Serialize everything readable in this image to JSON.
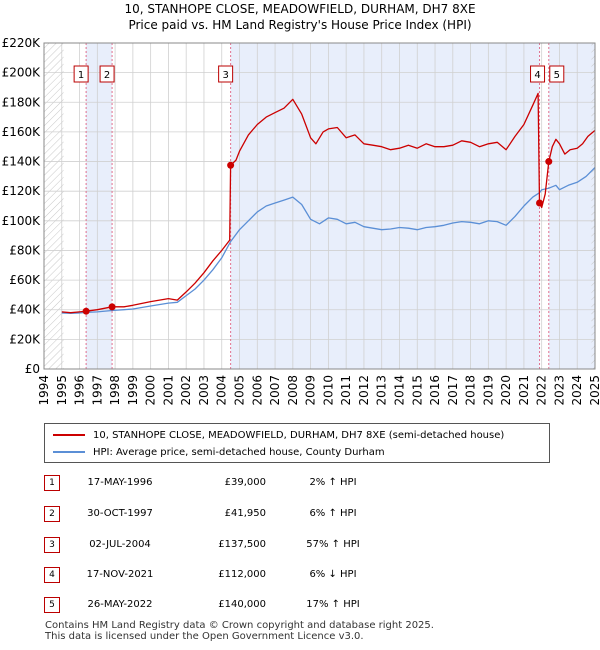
{
  "title_line1": "10, STANHOPE CLOSE, MEADOWFIELD, DURHAM, DH7 8XE",
  "title_line2": "Price paid vs. HM Land Registry's House Price Index (HPI)",
  "legend": {
    "property": "10, STANHOPE CLOSE, MEADOWFIELD, DURHAM, DH7 8XE (semi-detached house)",
    "hpi": "HPI: Average price, semi-detached house, County Durham"
  },
  "transactions": [
    {
      "num": "1",
      "date": "17-MAY-1996",
      "price": "£39,000",
      "hpi": "2% ↑ HPI"
    },
    {
      "num": "2",
      "date": "30-OCT-1997",
      "price": "£41,950",
      "hpi": "6% ↑ HPI"
    },
    {
      "num": "3",
      "date": "02-JUL-2004",
      "price": "£137,500",
      "hpi": "57% ↑ HPI"
    },
    {
      "num": "4",
      "date": "17-NOV-2021",
      "price": "£112,000",
      "hpi": "6% ↓ HPI"
    },
    {
      "num": "5",
      "date": "26-MAY-2022",
      "price": "£140,000",
      "hpi": "17% ↑ HPI"
    }
  ],
  "footer": {
    "line1": "Contains HM Land Registry data © Crown copyright and database right 2025.",
    "line2": "This data is licensed under the Open Government Licence v3.0."
  },
  "colors": {
    "property": "#cc0000",
    "hpi": "#5b8fd6",
    "shade": "#e8eefb",
    "grid": "#d0d0d0",
    "marker_line": "#e0708f"
  },
  "chart_data": {
    "type": "line",
    "title": "Price paid vs. HM Land Registry's House Price Index (HPI)",
    "xlim": [
      1994,
      2025
    ],
    "ylim": [
      0,
      220000
    ],
    "x_ticks": [
      1994,
      1995,
      1996,
      1997,
      1998,
      1999,
      2000,
      2001,
      2002,
      2003,
      2004,
      2005,
      2006,
      2007,
      2008,
      2009,
      2010,
      2011,
      2012,
      2013,
      2014,
      2015,
      2016,
      2017,
      2018,
      2019,
      2020,
      2021,
      2022,
      2023,
      2024,
      2025
    ],
    "y_ticks": [
      0,
      20000,
      40000,
      60000,
      80000,
      100000,
      120000,
      140000,
      160000,
      180000,
      200000,
      220000
    ],
    "y_tick_labels": [
      "£0",
      "£20K",
      "£40K",
      "£60K",
      "£80K",
      "£100K",
      "£120K",
      "£140K",
      "£160K",
      "£180K",
      "£200K",
      "£220K"
    ],
    "shaded_ranges": [
      [
        1996.37,
        1997.83
      ],
      [
        2004.5,
        2021.88
      ],
      [
        2022.4,
        2025
      ]
    ],
    "hatched_ranges": [
      [
        1994,
        1995.1
      ],
      [
        2024.8,
        2025
      ]
    ],
    "sales": [
      {
        "label": "1",
        "x": 1996.37,
        "y": 39000
      },
      {
        "label": "2",
        "x": 1997.83,
        "y": 41950
      },
      {
        "label": "3",
        "x": 2004.5,
        "y": 137500
      },
      {
        "label": "4",
        "x": 2021.88,
        "y": 112000
      },
      {
        "label": "5",
        "x": 2022.4,
        "y": 140000
      }
    ],
    "series": [
      {
        "name": "10, STANHOPE CLOSE, MEADOWFIELD, DURHAM, DH7 8XE (semi-detached house)",
        "x": [
          1995.0,
          1995.5,
          1996.0,
          1996.37,
          1997.0,
          1997.83,
          1998.5,
          1999.0,
          2000.0,
          2001.0,
          2001.5,
          2002.0,
          2002.5,
          2003.0,
          2003.5,
          2004.0,
          2004.45,
          2004.5,
          2004.8,
          2005.0,
          2005.5,
          2006.0,
          2006.5,
          2007.0,
          2007.5,
          2008.0,
          2008.5,
          2009.0,
          2009.3,
          2009.7,
          2010.0,
          2010.5,
          2011.0,
          2011.5,
          2012.0,
          2012.5,
          2013.0,
          2013.5,
          2014.0,
          2014.5,
          2015.0,
          2015.5,
          2016.0,
          2016.5,
          2017.0,
          2017.5,
          2018.0,
          2018.5,
          2019.0,
          2019.5,
          2020.0,
          2020.5,
          2021.0,
          2021.5,
          2021.8,
          2021.88,
          2022.0,
          2022.2,
          2022.4,
          2022.6,
          2022.8,
          2023.0,
          2023.3,
          2023.6,
          2024.0,
          2024.3,
          2024.6,
          2024.9,
          2025.0
        ],
        "y": [
          38500,
          38000,
          38500,
          39000,
          40000,
          41950,
          42000,
          43000,
          45500,
          47500,
          46500,
          52000,
          58000,
          65000,
          73000,
          80000,
          87000,
          137500,
          141000,
          147000,
          158000,
          165000,
          170000,
          173000,
          176000,
          182000,
          172000,
          156000,
          152000,
          160000,
          162000,
          163000,
          156000,
          158000,
          152000,
          151000,
          150000,
          148000,
          149000,
          151000,
          149000,
          152000,
          150000,
          150000,
          151000,
          154000,
          153000,
          150000,
          152000,
          153000,
          148000,
          157000,
          165000,
          178000,
          186000,
          112000,
          109000,
          118000,
          140000,
          150000,
          155000,
          152000,
          145000,
          148000,
          149000,
          152000,
          157000,
          160000,
          161000
        ]
      },
      {
        "name": "HPI: Average price, semi-detached house, County Durham",
        "x": [
          1995.0,
          1995.5,
          1996.0,
          1996.37,
          1997.0,
          1997.83,
          1998.5,
          1999.0,
          2000.0,
          2001.0,
          2001.5,
          2002.0,
          2002.5,
          2003.0,
          2003.5,
          2004.0,
          2004.5,
          2005.0,
          2005.5,
          2006.0,
          2006.5,
          2007.0,
          2007.5,
          2008.0,
          2008.5,
          2009.0,
          2009.5,
          2010.0,
          2010.5,
          2011.0,
          2011.5,
          2012.0,
          2012.5,
          2013.0,
          2013.5,
          2014.0,
          2014.5,
          2015.0,
          2015.5,
          2016.0,
          2016.5,
          2017.0,
          2017.5,
          2018.0,
          2018.5,
          2019.0,
          2019.5,
          2020.0,
          2020.5,
          2021.0,
          2021.5,
          2021.88,
          2022.0,
          2022.4,
          2022.8,
          2023.0,
          2023.5,
          2024.0,
          2024.5,
          2025.0
        ],
        "y": [
          37800,
          37500,
          37800,
          38200,
          38500,
          39500,
          40000,
          40500,
          42500,
          44500,
          45000,
          49500,
          54000,
          60000,
          67000,
          75000,
          86000,
          94000,
          100000,
          106000,
          110000,
          112000,
          114000,
          116000,
          111000,
          101000,
          98000,
          102000,
          101000,
          98000,
          99000,
          96000,
          95000,
          94000,
          94500,
          95500,
          95000,
          94000,
          95500,
          96000,
          97000,
          98500,
          99500,
          99000,
          98000,
          100000,
          99500,
          97000,
          103000,
          110000,
          116000,
          119000,
          121000,
          122000,
          124000,
          121000,
          124000,
          126000,
          130000,
          136000
        ]
      }
    ]
  }
}
